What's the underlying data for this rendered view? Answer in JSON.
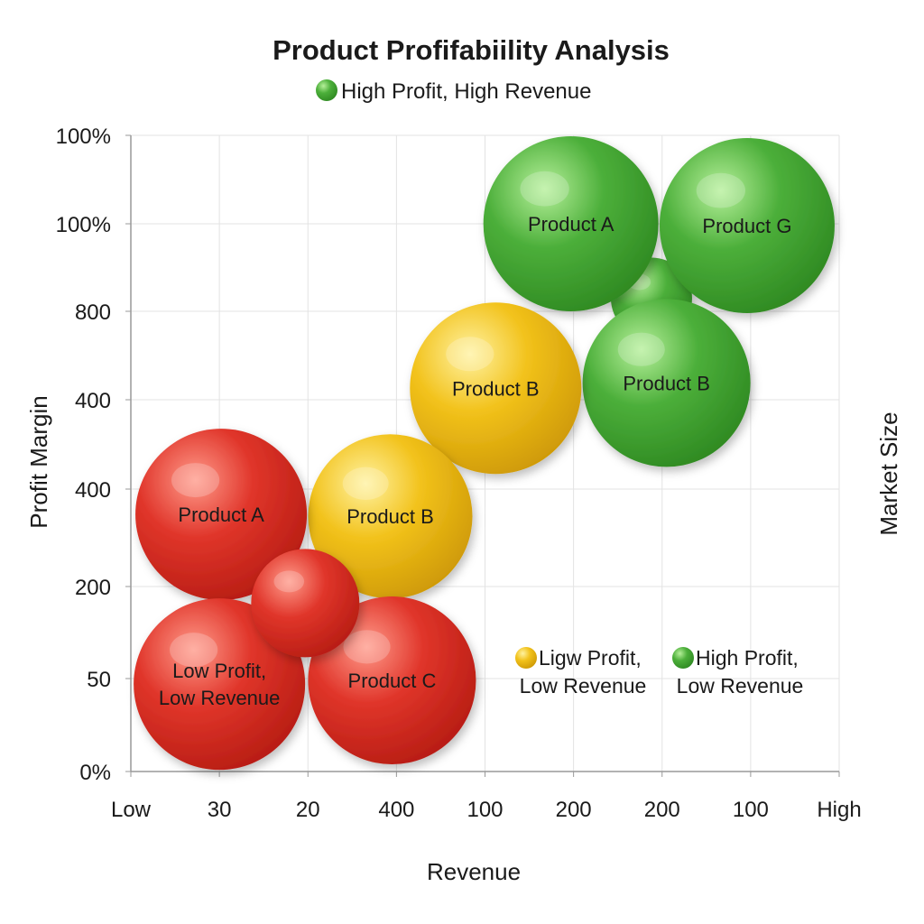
{
  "chart_data": {
    "type": "scatter",
    "subtype": "bubble",
    "title": "Product Profifabiility Analysis",
    "top_legend": {
      "label": "High Profit, High Revenue",
      "color": "#4caf3a"
    },
    "xlabel": "Revenue",
    "ylabel": "Profit Margin",
    "y2label": "Market Size",
    "x_ticks": [
      "Low",
      "30",
      "20",
      "400",
      "100",
      "200",
      "200",
      "100",
      "High"
    ],
    "y_ticks": [
      "0%",
      "50",
      "200",
      "400",
      "400",
      "800",
      "100%",
      "100%"
    ],
    "grid": true,
    "colors": {
      "red": "#e0352a",
      "yellow": "#f2c21b",
      "green": "#4caf3a"
    },
    "bubbles": [
      {
        "label": "",
        "x": 5.88,
        "y": 5.15,
        "size": 45,
        "color": "green"
      },
      {
        "label": "Product A",
        "x": 4.97,
        "y": 6.0,
        "size": 97,
        "color": "green"
      },
      {
        "label": "Product G",
        "x": 6.96,
        "y": 5.98,
        "size": 97,
        "color": "green"
      },
      {
        "label": "Product B",
        "x": 6.05,
        "y": 4.19,
        "size": 93,
        "color": "green"
      },
      {
        "label": "Product B",
        "x": 4.12,
        "y": 4.13,
        "size": 95,
        "color": "yellow"
      },
      {
        "label": "Product B",
        "x": 2.93,
        "y": 2.72,
        "size": 91,
        "color": "yellow"
      },
      {
        "label": "Product A",
        "x": 1.02,
        "y": 2.74,
        "size": 95,
        "color": "red"
      },
      {
        "label": "Low Profit,\nLow Revenue",
        "x": 1.0,
        "y": 0.94,
        "size": 95,
        "color": "red"
      },
      {
        "label": "Product C",
        "x": 2.95,
        "y": 0.98,
        "size": 93,
        "color": "red"
      },
      {
        "label": "",
        "x": 1.97,
        "y": 1.82,
        "size": 60,
        "color": "red"
      }
    ],
    "inner_legend": [
      {
        "line1": "Ligw Profit,",
        "line2": "Low Revenue",
        "color": "yellow"
      },
      {
        "line1": "High Profit,",
        "line2": "Low Revenue",
        "color": "green"
      }
    ]
  }
}
